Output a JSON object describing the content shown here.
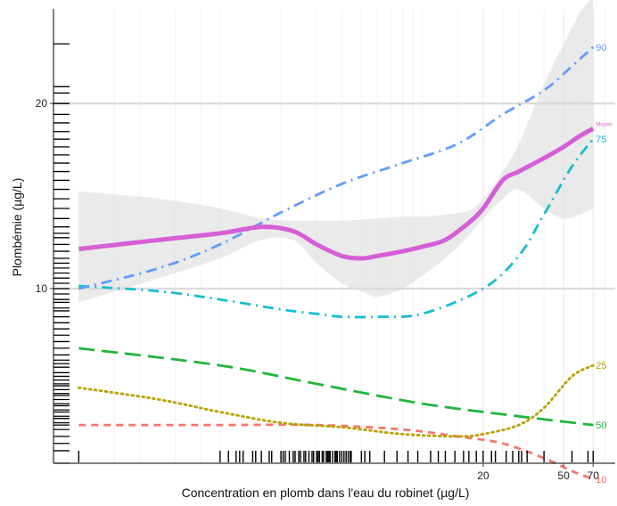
{
  "chart_data": {
    "type": "line",
    "title": "",
    "xlabel": "Concentration en plomb dans l'eau du robinet (µg/L)",
    "ylabel": "Plombémie (µg/L)",
    "x_scale": "log",
    "xlim": [
      0.15,
      90
    ],
    "ylim": [
      5.2,
      28.5
    ],
    "y_scale": "log",
    "x_tick_labels": [
      {
        "value": 20,
        "label": "20"
      },
      {
        "value": 50,
        "label": "50"
      },
      {
        "value": 70,
        "label": "70"
      }
    ],
    "y_tick_labels": [
      {
        "value": 10,
        "label": "10"
      },
      {
        "value": 20,
        "label": "20"
      }
    ],
    "grid": true,
    "legend": "none",
    "series": [
      {
        "name": "Moyen",
        "color": "#d55fd6",
        "dash": "solid",
        "x": [
          0.2,
          0.5,
          1.0,
          1.6,
          2.3,
          3.0,
          4.0,
          5.0,
          6.0,
          8.0,
          10.0,
          13.0,
          17.0,
          20.0,
          25.0,
          30.0,
          40.0,
          50.0,
          60.0,
          70.0
        ],
        "y": [
          11.6,
          12.0,
          12.3,
          12.6,
          12.4,
          11.8,
          11.3,
          11.2,
          11.3,
          11.5,
          11.7,
          12.0,
          12.8,
          13.5,
          15.0,
          15.5,
          16.3,
          17.0,
          17.7,
          18.2
        ]
      },
      {
        "name": "90",
        "color": "#619cff",
        "dash": "dashdot",
        "x": [
          0.2,
          0.5,
          1.0,
          2.0,
          4.0,
          8.0,
          15.0,
          25.0,
          40.0,
          55.0,
          70.0
        ],
        "y": [
          10.0,
          10.8,
          11.8,
          13.3,
          14.8,
          16.0,
          17.2,
          19.2,
          21.0,
          23.0,
          24.7
        ]
      },
      {
        "name": "75",
        "color": "#17becf",
        "dash": "dashdot",
        "x": [
          0.2,
          0.5,
          1.0,
          2.0,
          3.0,
          4.0,
          6.0,
          10.0,
          20.0,
          30.0,
          40.0,
          55.0,
          70.0
        ],
        "y": [
          10.1,
          9.9,
          9.6,
          9.25,
          9.1,
          9.0,
          9.0,
          9.1,
          10.0,
          11.3,
          13.2,
          15.8,
          17.5
        ]
      },
      {
        "name": "50",
        "color": "#1fb53a",
        "dash": "longdash",
        "x": [
          0.2,
          1.0,
          3.0,
          10.0,
          30.0,
          70.0
        ],
        "y": [
          8.0,
          7.5,
          7.0,
          6.5,
          6.2,
          6.0
        ]
      },
      {
        "name": "25",
        "color": "#b8a100",
        "dash": "dotted",
        "x": [
          0.2,
          0.5,
          1.0,
          2.0,
          4.0,
          8.0,
          15.0,
          20.0,
          30.0,
          40.0,
          55.0,
          70.0
        ],
        "y": [
          6.9,
          6.6,
          6.3,
          6.05,
          5.95,
          5.8,
          5.75,
          5.8,
          6.0,
          6.4,
          7.2,
          7.5
        ]
      },
      {
        "name": "10",
        "color": "#f8766d",
        "dash": "dashed",
        "x": [
          0.2,
          1.0,
          3.0,
          8.0,
          15.0,
          25.0,
          40.0,
          55.0,
          70.0
        ],
        "y": [
          6.0,
          6.0,
          6.0,
          5.9,
          5.75,
          5.6,
          5.3,
          5.05,
          4.9
        ]
      }
    ],
    "confidence_band": {
      "series": "Moyen",
      "color": "#d9d9d9",
      "x": [
        0.2,
        0.5,
        1.0,
        1.6,
        2.3,
        3.0,
        4.0,
        5.0,
        6.0,
        8.0,
        10.0,
        13.0,
        17.0,
        20.0,
        25.0,
        30.0,
        40.0,
        50.0,
        60.0,
        70.0
      ],
      "upper": [
        14.4,
        14.0,
        13.5,
        13.0,
        12.9,
        12.9,
        12.9,
        12.95,
        13.0,
        13.1,
        13.1,
        13.2,
        13.4,
        14.0,
        15.5,
        17.2,
        21.5,
        25.0,
        28.0,
        30.0
      ],
      "lower": [
        9.5,
        10.4,
        11.2,
        12.0,
        12.0,
        11.0,
        10.2,
        9.9,
        9.7,
        10.0,
        10.5,
        11.2,
        12.2,
        13.0,
        14.0,
        14.5,
        13.5,
        13.0,
        13.2,
        13.5
      ]
    },
    "rug_x": [
      0.2,
      1.0,
      1.1,
      1.2,
      1.25,
      1.3,
      1.45,
      1.5,
      1.6,
      1.75,
      1.8,
      2.0,
      2.05,
      2.1,
      2.2,
      2.3,
      2.35,
      2.45,
      2.5,
      2.6,
      2.65,
      2.75,
      2.85,
      2.9,
      3.0,
      3.05,
      3.1,
      3.2,
      3.25,
      3.35,
      3.4,
      3.45,
      3.5,
      3.6,
      3.7,
      3.75,
      3.8,
      3.9,
      4.0,
      4.1,
      4.2,
      4.3,
      4.4,
      4.45,
      5.0,
      5.2,
      5.5,
      6.5,
      7.5,
      8.5,
      9.5,
      11.0,
      12.0,
      13.0,
      14.5,
      16.0,
      17.0,
      18.5,
      20.0,
      22.0,
      23.0,
      26.0,
      28.0,
      30.0,
      31.0,
      33.0,
      40.0,
      55.0,
      66.0,
      70.0
    ],
    "rug_y": [
      5.2,
      5.45,
      5.6,
      5.75,
      5.9,
      6.0,
      6.05,
      6.15,
      6.2,
      6.3,
      6.35,
      6.45,
      6.5,
      6.6,
      6.7,
      6.75,
      6.85,
      6.95,
      7.0,
      7.1,
      7.2,
      7.3,
      7.45,
      7.55,
      7.65,
      7.8,
      8.0,
      8.2,
      8.4,
      8.6,
      8.8,
      9.0,
      9.2,
      9.3,
      9.5,
      9.6,
      9.8,
      10.0,
      10.2,
      10.4,
      10.6,
      10.8,
      11.0,
      11.2,
      11.5,
      11.8,
      12.1,
      12.3,
      12.6,
      13.0,
      13.5,
      14.0,
      14.5,
      15.0,
      15.5,
      16.0,
      16.5,
      17.0,
      17.5,
      18.0,
      18.6,
      19.2,
      20.0,
      20.8,
      21.3,
      25.0
    ]
  }
}
